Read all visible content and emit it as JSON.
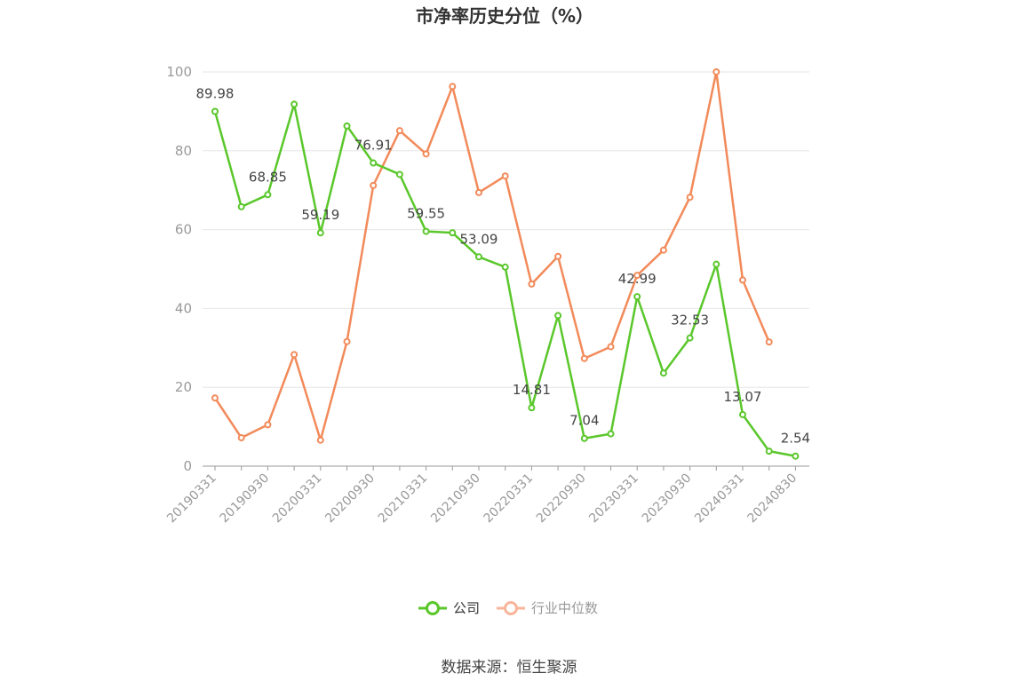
{
  "chart_data": {
    "type": "line",
    "title": "市净率历史分位（%）",
    "source": "数据来源：恒生聚源",
    "ylim": [
      0,
      100
    ],
    "yticks": [
      0,
      20,
      40,
      60,
      80,
      100
    ],
    "grid": true,
    "legend_position": "bottom",
    "tick_labels": [
      "20190331",
      "20190930",
      "20200331",
      "20200930",
      "20210331",
      "20210930",
      "20220331",
      "20220930",
      "20230331",
      "20230930",
      "20240331",
      "20240830"
    ],
    "x": [
      "20190331",
      "20190630",
      "20190930",
      "20191231",
      "20200331",
      "20200630",
      "20200930",
      "20201231",
      "20210331",
      "20210630",
      "20210930",
      "20211231",
      "20220331",
      "20220630",
      "20220930",
      "20221231",
      "20230331",
      "20230630",
      "20230930",
      "20231231",
      "20240331",
      "20240630",
      "20240830"
    ],
    "series": [
      {
        "name": "公司",
        "color": "#5ac72b",
        "values": [
          89.98,
          65.8,
          68.85,
          91.8,
          59.19,
          86.3,
          76.91,
          74.0,
          59.55,
          59.2,
          53.09,
          50.5,
          14.81,
          38.2,
          7.04,
          8.2,
          42.99,
          23.6,
          32.53,
          51.2,
          13.07,
          3.8,
          2.54
        ],
        "labels": [
          "89.98",
          "",
          "68.85",
          "",
          "59.19",
          "",
          "76.91",
          "",
          "59.55",
          "",
          "53.09",
          "",
          "14.81",
          "",
          "7.04",
          "",
          "42.99",
          "",
          "32.53",
          "",
          "13.07",
          "",
          "2.54"
        ]
      },
      {
        "name": "行业中位数",
        "color": "#f28a5a",
        "values": [
          17.3,
          7.2,
          10.5,
          28.3,
          6.6,
          31.6,
          71.2,
          85.1,
          79.2,
          96.3,
          69.4,
          73.6,
          46.2,
          53.2,
          27.3,
          30.3,
          48.4,
          54.8,
          68.2,
          100,
          47.2,
          31.5,
          null
        ],
        "labels": []
      }
    ]
  }
}
